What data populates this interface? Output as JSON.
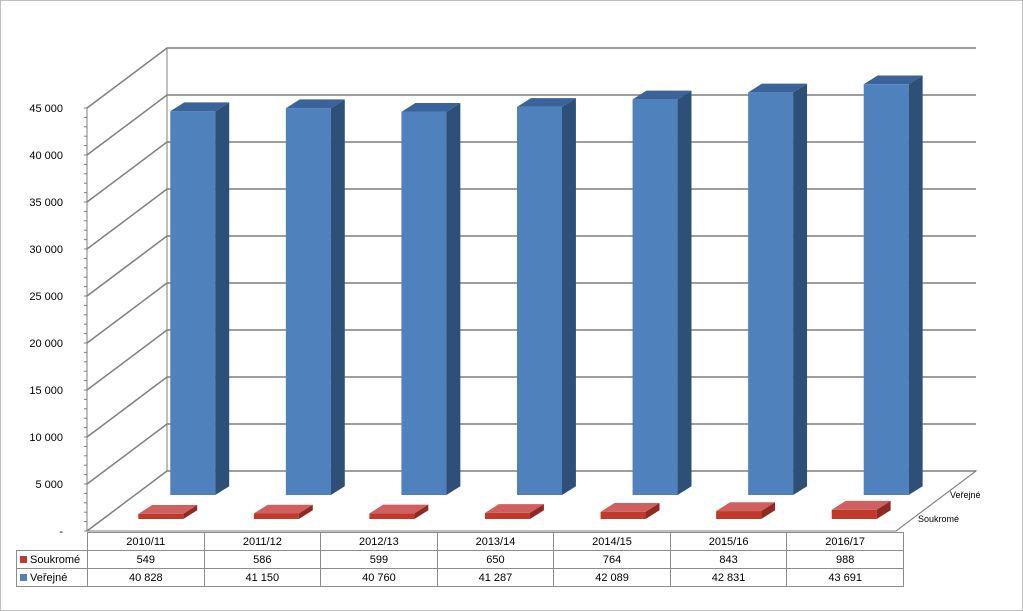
{
  "chart_data": {
    "type": "bar",
    "categories": [
      "2010/11",
      "2011/12",
      "2012/13",
      "2013/14",
      "2014/15",
      "2015/16",
      "2016/17"
    ],
    "series": [
      {
        "name": "Soukromé",
        "values": [
          549,
          586,
          599,
          650,
          764,
          843,
          988
        ],
        "labels": [
          "549",
          "586",
          "599",
          "650",
          "764",
          "843",
          "988"
        ]
      },
      {
        "name": "Veřejné",
        "values": [
          40828,
          41150,
          40760,
          41287,
          42089,
          42831,
          43691
        ],
        "labels": [
          "40 828",
          "41 150",
          "40 760",
          "41 287",
          "42 089",
          "42 831",
          "43 691"
        ]
      }
    ],
    "y_ticks": [
      "-",
      "5 000",
      "10 000",
      "15 000",
      "20 000",
      "25 000",
      "30 000",
      "35 000",
      "40 000",
      "45 000"
    ],
    "ylim": [
      0,
      45000
    ],
    "grid": true,
    "legend": "data-table",
    "style_3d": true,
    "colors": {
      "Soukromé": {
        "front": "#c0392b",
        "top": "#d06060",
        "side": "#8e2a22"
      },
      "Veřejné": {
        "front": "#4f81bd",
        "top": "#3a639a",
        "side": "#2e4f78"
      }
    }
  }
}
